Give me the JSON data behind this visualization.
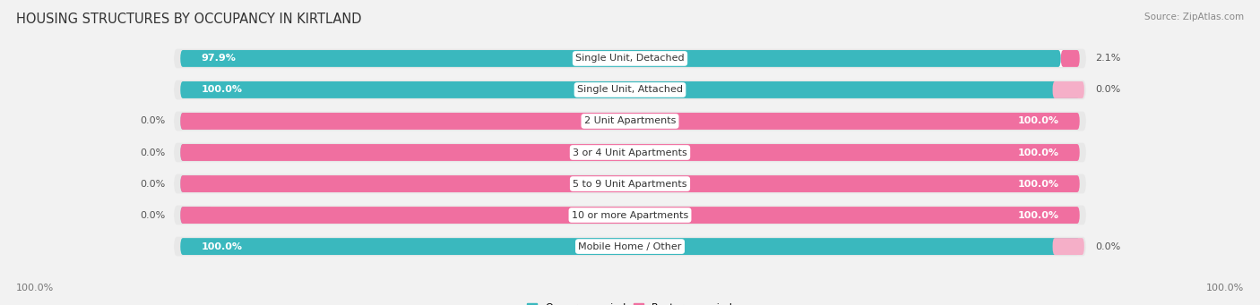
{
  "title": "HOUSING STRUCTURES BY OCCUPANCY IN KIRTLAND",
  "source": "Source: ZipAtlas.com",
  "categories": [
    "Single Unit, Detached",
    "Single Unit, Attached",
    "2 Unit Apartments",
    "3 or 4 Unit Apartments",
    "5 to 9 Unit Apartments",
    "10 or more Apartments",
    "Mobile Home / Other"
  ],
  "owner_pct": [
    97.9,
    100.0,
    0.0,
    0.0,
    0.0,
    0.0,
    100.0
  ],
  "renter_pct": [
    2.1,
    0.0,
    100.0,
    100.0,
    100.0,
    100.0,
    0.0
  ],
  "owner_color": "#3ab8be",
  "renter_color": "#f06fa0",
  "owner_color_light": "#a8dce0",
  "renter_color_light": "#f5afc8",
  "row_bg_color": "#e8e8e8",
  "bg_color": "#f2f2f2",
  "title_fontsize": 10.5,
  "label_fontsize": 8,
  "pct_fontsize": 8,
  "source_fontsize": 7.5,
  "legend_fontsize": 8
}
